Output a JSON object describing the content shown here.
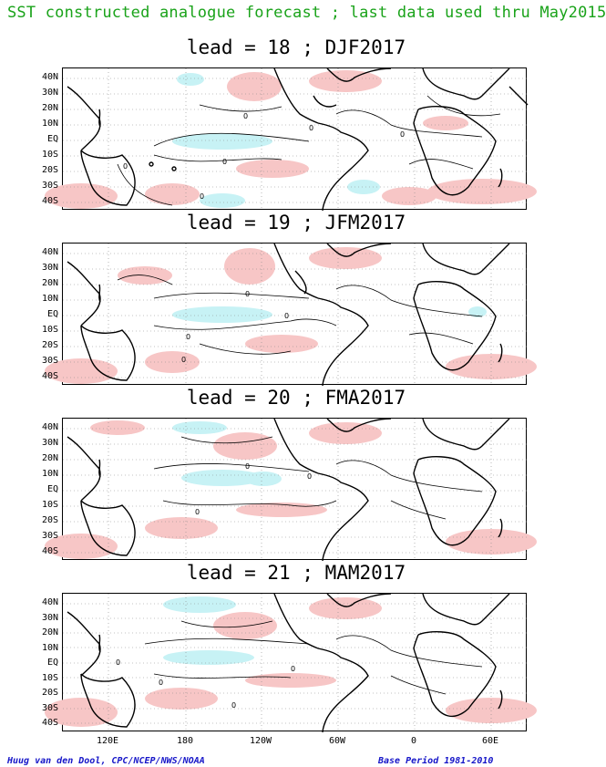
{
  "header": {
    "title": "SST constructed analogue forecast ; last data used thru May2015"
  },
  "panels": [
    {
      "title": "lead = 18 ; DJF2017"
    },
    {
      "title": "lead = 19 ; JFM2017"
    },
    {
      "title": "lead = 20 ; FMA2017"
    },
    {
      "title": "lead = 21 ; MAM2017"
    }
  ],
  "axes": {
    "lat_labels": [
      "40N",
      "30N",
      "20N",
      "10N",
      "EQ",
      "10S",
      "20S",
      "30S",
      "40S"
    ],
    "lon_labels": [
      "120E",
      "180",
      "120W",
      "60W",
      "0",
      "60E"
    ],
    "contour_label": "0"
  },
  "colors": {
    "warm": "#f7c6c6",
    "cool": "#c7f2f5",
    "title": "#1aa31a",
    "credit": "#1515c8"
  },
  "footer": {
    "credit": "Huug van den Dool, CPC/NCEP/NWS/NOAA",
    "base_period": "Base Period 1981-2010"
  }
}
